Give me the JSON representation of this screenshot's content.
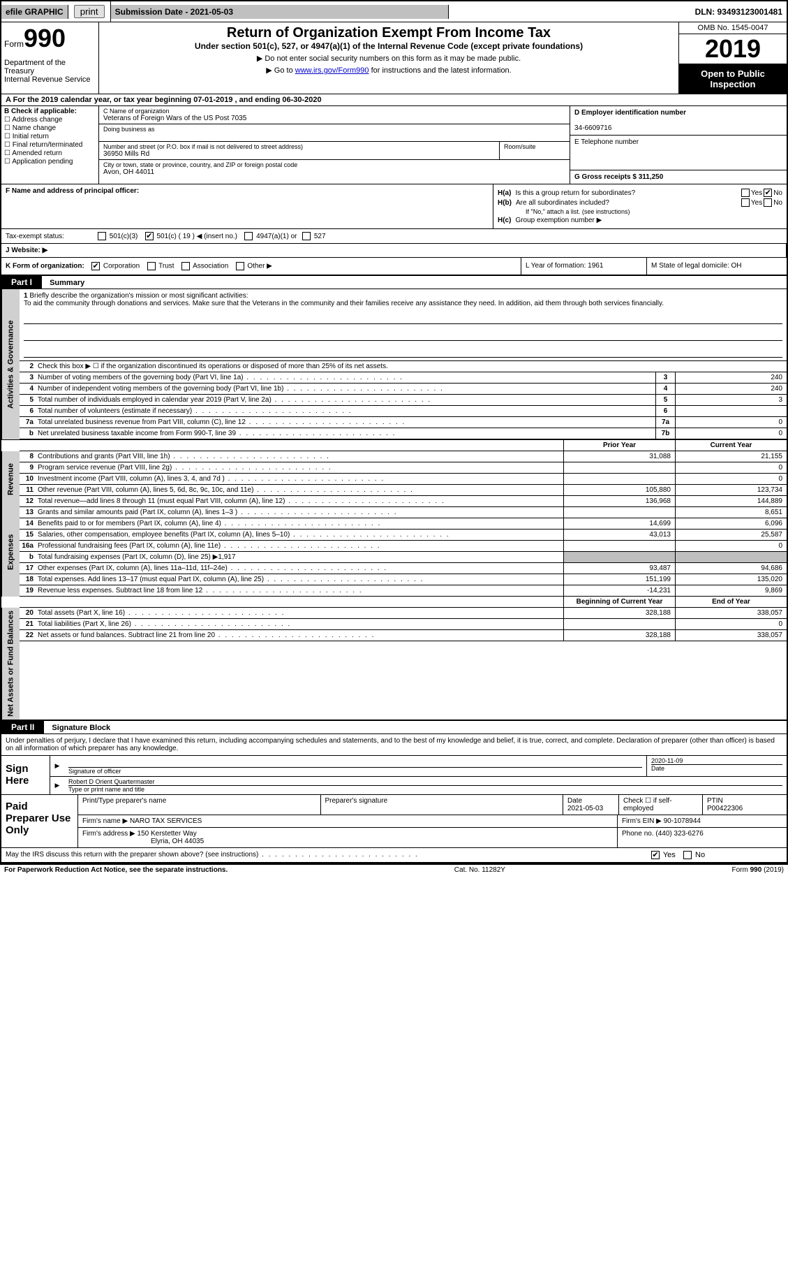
{
  "topbar": {
    "efile": "efile GRAPHIC",
    "print": "print",
    "submission": "Submission Date - 2021-05-03",
    "dln": "DLN: 93493123001481"
  },
  "header": {
    "form_prefix": "Form",
    "form_num": "990",
    "dept": "Department of the Treasury\nInternal Revenue Service",
    "title": "Return of Organization Exempt From Income Tax",
    "subtitle": "Under section 501(c), 527, or 4947(a)(1) of the Internal Revenue Code (except private foundations)",
    "note1": "▶ Do not enter social security numbers on this form as it may be made public.",
    "note2_pre": "▶ Go to ",
    "note2_link": "www.irs.gov/Form990",
    "note2_post": " for instructions and the latest information.",
    "omb": "OMB No. 1545-0047",
    "year": "2019",
    "open": "Open to Public Inspection"
  },
  "line_a": "A For the 2019 calendar year, or tax year beginning 07-01-2019   , and ending 06-30-2020",
  "col_b": {
    "title": "B Check if applicable:",
    "items": [
      "Address change",
      "Name change",
      "Initial return",
      "Final return/terminated",
      "Amended return",
      "Application pending"
    ]
  },
  "col_c": {
    "c_label": "C Name of organization",
    "org_name": "Veterans of Foreign Wars of the US Post 7035",
    "dba_label": "Doing business as",
    "addr_label": "Number and street (or P.O. box if mail is not delivered to street address)",
    "room_label": "Room/suite",
    "street": "36950 Mills Rd",
    "city_label": "City or town, state or province, country, and ZIP or foreign postal code",
    "city": "Avon, OH  44011",
    "f_label": "F  Name and address of principal officer:"
  },
  "col_d": {
    "d_label": "D Employer identification number",
    "ein": "34-6609716",
    "e_label": "E Telephone number",
    "g_label": "G Gross receipts $ 311,250"
  },
  "col_h": {
    "ha_label": "H(a)",
    "ha_text": "Is this a group return for subordinates?",
    "hb_label": "H(b)",
    "hb_text": "Are all subordinates included?",
    "hb_note": "If \"No,\" attach a list. (see instructions)",
    "hc_label": "H(c)",
    "hc_text": "Group exemption number ▶",
    "yes": "Yes",
    "no": "No"
  },
  "row_tax": {
    "label": "Tax-exempt status:",
    "opt1": "501(c)(3)",
    "opt2": "501(c) ( 19 ) ◀ (insert no.)",
    "opt3": "4947(a)(1) or",
    "opt4": "527"
  },
  "row_web": "J   Website: ▶",
  "row_k": {
    "k": "K Form of organization:",
    "corp": "Corporation",
    "trust": "Trust",
    "assoc": "Association",
    "other": "Other ▶",
    "l": "L Year of formation: 1961",
    "m": "M State of legal domicile: OH"
  },
  "part1": {
    "hdr": "Part I",
    "title": "Summary",
    "mission_label": "Briefly describe the organization's mission or most significant activities:",
    "mission": "To aid the community through donations and services. Make sure that the Veterans in the community and their families receive any assistance they need. In addition, aid them through both services financially.",
    "line2": "Check this box ▶ ☐  if the organization discontinued its operations or disposed of more than 25% of its net assets.",
    "rows_ag": [
      {
        "n": "3",
        "d": "Number of voting members of the governing body (Part VI, line 1a)",
        "box": "3",
        "v": "240"
      },
      {
        "n": "4",
        "d": "Number of independent voting members of the governing body (Part VI, line 1b)",
        "box": "4",
        "v": "240"
      },
      {
        "n": "5",
        "d": "Total number of individuals employed in calendar year 2019 (Part V, line 2a)",
        "box": "5",
        "v": "3"
      },
      {
        "n": "6",
        "d": "Total number of volunteers (estimate if necessary)",
        "box": "6",
        "v": ""
      },
      {
        "n": "7a",
        "d": "Total unrelated business revenue from Part VIII, column (C), line 12",
        "box": "7a",
        "v": "0"
      },
      {
        "n": "b",
        "d": "Net unrelated business taxable income from Form 990-T, line 39",
        "box": "7b",
        "v": "0"
      }
    ],
    "col_prior": "Prior Year",
    "col_current": "Current Year",
    "rows_rev": [
      {
        "n": "8",
        "d": "Contributions and grants (Part VIII, line 1h)",
        "p": "31,088",
        "c": "21,155"
      },
      {
        "n": "9",
        "d": "Program service revenue (Part VIII, line 2g)",
        "p": "",
        "c": "0"
      },
      {
        "n": "10",
        "d": "Investment income (Part VIII, column (A), lines 3, 4, and 7d )",
        "p": "",
        "c": "0"
      },
      {
        "n": "11",
        "d": "Other revenue (Part VIII, column (A), lines 5, 6d, 8c, 9c, 10c, and 11e)",
        "p": "105,880",
        "c": "123,734"
      },
      {
        "n": "12",
        "d": "Total revenue—add lines 8 through 11 (must equal Part VIII, column (A), line 12)",
        "p": "136,968",
        "c": "144,889"
      }
    ],
    "rows_exp": [
      {
        "n": "13",
        "d": "Grants and similar amounts paid (Part IX, column (A), lines 1–3 )",
        "p": "",
        "c": "8,651"
      },
      {
        "n": "14",
        "d": "Benefits paid to or for members (Part IX, column (A), line 4)",
        "p": "14,699",
        "c": "6,096"
      },
      {
        "n": "15",
        "d": "Salaries, other compensation, employee benefits (Part IX, column (A), lines 5–10)",
        "p": "43,013",
        "c": "25,587"
      },
      {
        "n": "16a",
        "d": "Professional fundraising fees (Part IX, column (A), line 11e)",
        "p": "",
        "c": "0"
      },
      {
        "n": "b",
        "d": "Total fundraising expenses (Part IX, column (D), line 25) ▶1,917",
        "p": "shade",
        "c": "shade"
      },
      {
        "n": "17",
        "d": "Other expenses (Part IX, column (A), lines 11a–11d, 11f–24e)",
        "p": "93,487",
        "c": "94,686"
      },
      {
        "n": "18",
        "d": "Total expenses. Add lines 13–17 (must equal Part IX, column (A), line 25)",
        "p": "151,199",
        "c": "135,020"
      },
      {
        "n": "19",
        "d": "Revenue less expenses. Subtract line 18 from line 12",
        "p": "-14,231",
        "c": "9,869"
      }
    ],
    "col_begin": "Beginning of Current Year",
    "col_end": "End of Year",
    "rows_na": [
      {
        "n": "20",
        "d": "Total assets (Part X, line 16)",
        "p": "328,188",
        "c": "338,057"
      },
      {
        "n": "21",
        "d": "Total liabilities (Part X, line 26)",
        "p": "",
        "c": "0"
      },
      {
        "n": "22",
        "d": "Net assets or fund balances. Subtract line 21 from line 20",
        "p": "328,188",
        "c": "338,057"
      }
    ]
  },
  "part2": {
    "hdr": "Part II",
    "title": "Signature Block",
    "decl": "Under penalties of perjury, I declare that I have examined this return, including accompanying schedules and statements, and to the best of my knowledge and belief, it is true, correct, and complete. Declaration of preparer (other than officer) is based on all information of which preparer has any knowledge.",
    "sign_here": "Sign Here",
    "sig_officer": "Signature of officer",
    "date_label": "Date",
    "sig_date": "2020-11-09",
    "name_title": "Robert D Orient Quartermaster",
    "name_label": "Type or print name and title",
    "paid": "Paid Preparer Use Only",
    "pcol1": "Print/Type preparer's name",
    "pcol2": "Preparer's signature",
    "pcol3": "Date",
    "pdate": "2021-05-03",
    "pcol4": "Check ☐ if self-employed",
    "pcol5": "PTIN",
    "ptin": "P00422306",
    "firm_label": "Firm's name    ▶",
    "firm": "NARO TAX SERVICES",
    "firm_ein_label": "Firm's EIN ▶",
    "firm_ein": "90-1078944",
    "firm_addr_label": "Firm's address ▶",
    "firm_addr1": "150 Kerstetter Way",
    "firm_addr2": "Elyria, OH  44035",
    "phone_label": "Phone no.",
    "phone": "(440) 323-6276",
    "discuss": "May the IRS discuss this return with the preparer shown above? (see instructions)"
  },
  "footer": {
    "left": "For Paperwork Reduction Act Notice, see the separate instructions.",
    "mid": "Cat. No. 11282Y",
    "right": "Form 990 (2019)"
  }
}
